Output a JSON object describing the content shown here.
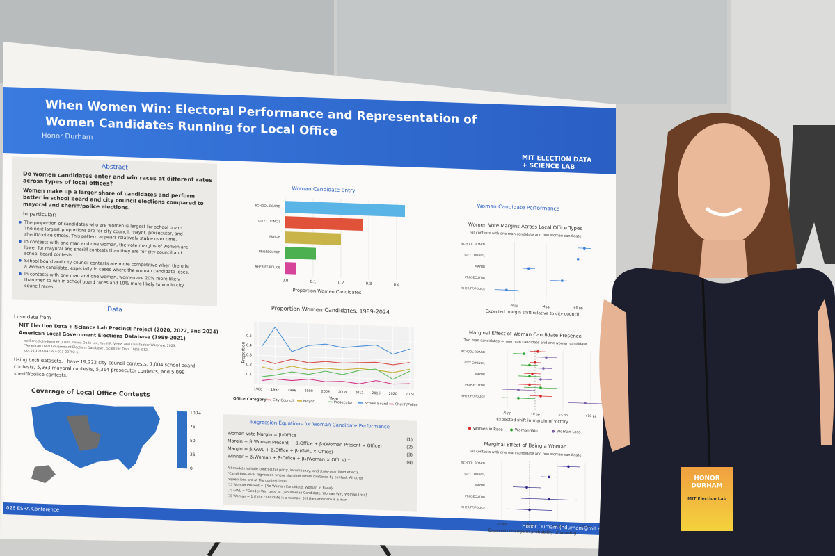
{
  "poster": {
    "title_lines": [
      "When Women Win: Electoral Performance and Representation of",
      "Women Candidates Running for Local Office"
    ],
    "author": "Honor Durham",
    "logo": [
      "MIT ELECTION DATA",
      "+ SCIENCE LAB"
    ],
    "abstract": {
      "heading": "Abstract",
      "question": [
        "Do women candidates enter and win races at different rates",
        "across types of local offices?"
      ],
      "summary": [
        "Women make up a larger share of candidates and perform",
        "better in school board and city council elections compared to",
        "mayoral and sheriff/police elections."
      ],
      "intro": "In particular:",
      "bullets": [
        [
          "The proportion of candidates who are women is largest for school board.",
          "The next largest proportions are for city council, mayor, prosecutor, and",
          "sheriff/police offices. This pattern appears relatively stable over time."
        ],
        [
          "In contests with one man and one woman, the vote margins of women are",
          "lower for mayoral and sheriff contests than they are for city council and",
          "school board contests."
        ],
        [
          "School board and city council contests are more competitive when there is",
          "a woman candidate, especially in cases where the woman candidate loses."
        ],
        [
          "In contests with one man and one woman, women are 20% more likely",
          "than men to win in school board races and 10% more likely to win in city",
          "council races."
        ]
      ]
    },
    "data_section": {
      "heading": "Data",
      "intro": "I use data from",
      "sources": [
        "MIT Election Data + Science Lab Precinct Project (2020, 2022, and 2024)",
        "American Local Government Elections Database (1989-2021)"
      ],
      "citation": [
        "de Benedictis-Kessner, Justin, Diana Da In Lee, Yamil R. Velez, and Christopher Warshaw. 2023.",
        "\"American Local Government Elections Database\". Scientific Data 10(1): 912.",
        "doi:10.1038/s41597-023-02792-x."
      ],
      "summary": [
        "Using both datasets, I have 19,222 city council contests, 7,004 school board",
        "contests, 5,933 mayoral contests, 5,314 prosecutor contests, and 5,099",
        "sheriff/police contests."
      ]
    },
    "map": {
      "title": "Coverage of Local Office Contests",
      "legend": [
        "100+",
        "75",
        "50",
        "25",
        "0"
      ]
    },
    "bar_chart": {
      "type": "bar",
      "title": "Woman Candidate Entry",
      "categories": [
        "SCHOOL BOARD",
        "CITY COUNCIL",
        "MAYOR",
        "PROSECUTOR",
        "SHERIFF/POLICE"
      ],
      "values": [
        0.43,
        0.28,
        0.2,
        0.11,
        0.04
      ],
      "colors": [
        "#5ab4e6",
        "#e0533a",
        "#c9b44a",
        "#4caf50",
        "#d6449a"
      ],
      "xlim": [
        0,
        0.45
      ],
      "xticks": [
        {
          "value": 0,
          "label": "0.0"
        },
        0.1,
        0.2,
        0.3,
        0.4
      ],
      "xlabel": "Proportion Women Candidates"
    },
    "line_chart": {
      "type": "line",
      "title": "Proportion Women Candidates, 1989-2024",
      "xlabel": "Year",
      "ylabel": "Proportion",
      "x": [
        1989,
        1992,
        1996,
        2000,
        2004,
        2008,
        2012,
        2016,
        2020,
        2024
      ],
      "xlim": [
        1987,
        2025
      ],
      "xticks": [
        1988,
        1992,
        1996,
        2000,
        2004,
        2008,
        2012,
        2016,
        2020,
        2024
      ],
      "ylim": [
        0,
        0.65
      ],
      "yticks": [
        0.1,
        0.2,
        0.3,
        0.4,
        0.5
      ],
      "legend_title": "Office Category",
      "series": [
        {
          "name": "City Council",
          "color": "#d9534f",
          "values": [
            0.25,
            0.22,
            0.27,
            0.24,
            0.26,
            0.25,
            0.26,
            0.27,
            0.25,
            0.28
          ]
        },
        {
          "name": "Mayor",
          "color": "#c8b23a",
          "values": [
            0.18,
            0.15,
            0.2,
            0.17,
            0.19,
            0.18,
            0.2,
            0.19,
            0.17,
            0.21
          ]
        },
        {
          "name": "Prosecutor",
          "color": "#5cb85c",
          "values": [
            0.08,
            0.1,
            0.14,
            0.12,
            0.16,
            0.13,
            0.18,
            0.2,
            0.1,
            0.19
          ]
        },
        {
          "name": "School Board",
          "color": "#4a90d9",
          "values": [
            0.4,
            0.6,
            0.35,
            0.42,
            0.44,
            0.41,
            0.43,
            0.45,
            0.36,
            0.42
          ]
        },
        {
          "name": "Sheriff/Police",
          "color": "#d63384",
          "values": [
            0.04,
            0.06,
            0.05,
            0.07,
            0.05,
            0.06,
            0.04,
            0.08,
            0.05,
            0.06
          ]
        }
      ]
    },
    "performance": {
      "heading": "Woman Candidate Performance",
      "charts": [
        {
          "type": "dot",
          "title": "Women Vote Margins Across Local Office Types",
          "subtitle": "For contests with one man candidate and one woman candidate",
          "categories": [
            "SCHOOL BOARD",
            "CITY COUNCIL",
            "MAYOR",
            "PROSECUTOR",
            "SHERIFF/POLICE"
          ],
          "color": "#3b7dd8",
          "values": [
            0.8,
            0,
            -6.2,
            -2,
            -9
          ],
          "errors": [
            0.8,
            0,
            0.8,
            1.5,
            1.5
          ],
          "xlim": [
            -11,
            3
          ],
          "xticks": [
            {
              "value": -8,
              "label": "-8 pp"
            },
            {
              "value": -4,
              "label": "-4 pp"
            },
            {
              "value": 0,
              "label": "+0 pp"
            }
          ],
          "xlabel": "Expected margin shift relative to city council"
        },
        {
          "type": "dot",
          "title": "Marginal Effect of Woman Candidate Presence",
          "subtitle": "Two man candidates -> one man candidate and one woman candidate",
          "categories": [
            "SCHOOL BOARD",
            "CITY COUNCIL",
            "MAYOR",
            "PROSECUTOR",
            "SHERIFF/POLICE"
          ],
          "xlim": [
            -8,
            12
          ],
          "xticks": [
            {
              "value": -5,
              "label": "-5 pp"
            },
            {
              "value": 0,
              "label": "+0 pp"
            },
            {
              "value": 5,
              "label": "+5 pp"
            },
            {
              "value": 10,
              "label": "+10 pp"
            }
          ],
          "xlabel": "Expected shift in margin of victory",
          "series": [
            {
              "name": "Women in Race",
              "color": "#d62728",
              "values": [
                0.5,
                0,
                -0.5,
                -1,
                1
              ],
              "errors": [
                1.5,
                1,
                1.5,
                2,
                2
              ]
            },
            {
              "name": "Woman Win",
              "color": "#2ca02c",
              "values": [
                -2,
                -1,
                -1,
                1,
                -3
              ],
              "errors": [
                2,
                1.5,
                2,
                3,
                3
              ]
            },
            {
              "name": "Woman Loss",
              "color": "#7b5ea7",
              "values": [
                2,
                1.5,
                1,
                -3,
                9
              ],
              "errors": [
                2,
                1.5,
                2,
                3,
                3
              ]
            }
          ]
        },
        {
          "type": "dot",
          "title": "Marginal Effect of Being a Woman",
          "subtitle": "For contests with one man candidate and one woman candidate",
          "categories": [
            "SCHOOL BOARD",
            "CITY COUNCIL",
            "MAYOR",
            "PROSECUTOR",
            "SHERIFF/POLICE"
          ],
          "color": "#2e2a8a",
          "values": [
            14,
            7,
            -1,
            7,
            0
          ],
          "errors": [
            4,
            3,
            5,
            10,
            8
          ],
          "xlim": [
            -14,
            26
          ],
          "xticks": [
            {
              "value": -10,
              "label": "-10 pp"
            },
            {
              "value": 0,
              "label": "+0 pp"
            },
            {
              "value": 10,
              "label": "+10 pp"
            },
            {
              "value": 20,
              "label": "+20 pp"
            }
          ],
          "xlabel": "Expected change in probability of winning"
        }
      ]
    },
    "regression": {
      "heading": "Regression Equations for Woman Candidate Performance",
      "equations": [
        "Woman Vote Margin = β₁Office",
        "Margin = β₁Woman Present + β₂Office + β₃(Woman Present × Office)",
        "Margin = β₁GWL + β₂Office + β₃(GWL × Office)",
        "Winner = β₁Woman + β₂Office + β₃(Woman × Office) *"
      ],
      "numbers": [
        "(1)",
        "(2)",
        "(3)",
        "(4)"
      ],
      "notes": [
        "All models include controls for party, incumbency, and state-year fixed effects.",
        "*Candidate-level regression where standard errors clustered by contest. All other",
        "regressions are at the contest level.",
        "(1) Woman Present = {No Woman Candidate, Woman in Race}",
        "(2) GWL = \"Gender Win Loss\" = {No Woman Candidate, Woman Win, Woman Loss}",
        "(3) Woman = 1 if the candidate is a woman, 0 if the candidate is a man"
      ]
    },
    "footer": {
      "conference": "026 ESRA Conference",
      "contact": "Honor Durham (hdurham@mit.edu)"
    }
  },
  "badge": {
    "name": [
      "HONOR",
      "DURHAM"
    ],
    "org": "MIT Election Lab"
  }
}
